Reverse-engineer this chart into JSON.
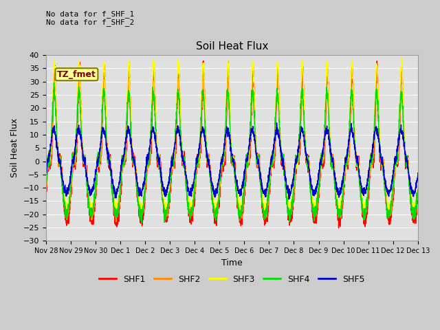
{
  "title": "Soil Heat Flux",
  "ylabel": "Soil Heat Flux",
  "xlabel": "Time",
  "ylim": [
    -30,
    40
  ],
  "bg_color": "#cccccc",
  "plot_bg_color": "#e0e0e0",
  "grid_color": "#ffffff",
  "annotation_text": "No data for f_SHF_1\nNo data for f_SHF_2",
  "box_label": "TZ_fmet",
  "box_bg": "#ffff99",
  "box_edge": "#808000",
  "box_text_color": "#800000",
  "legend_entries": [
    "SHF1",
    "SHF2",
    "SHF3",
    "SHF4",
    "SHF5"
  ],
  "line_colors": [
    "#ff0000",
    "#ff8c00",
    "#ffff00",
    "#00dd00",
    "#0000cc"
  ],
  "line_width": 1.0,
  "x_tick_labels": [
    "Nov 28",
    "Nov 29",
    "Nov 30",
    "Dec 1",
    "Dec 2",
    "Dec 3",
    "Dec 4",
    "Dec 5",
    "Dec 6",
    "Dec 7",
    "Dec 8",
    "Dec 9",
    "Dec 10",
    "Dec 11",
    "Dec 12",
    "Dec 13"
  ],
  "yticks": [
    -30,
    -25,
    -20,
    -15,
    -10,
    -5,
    0,
    5,
    10,
    15,
    20,
    25,
    30,
    35,
    40
  ]
}
